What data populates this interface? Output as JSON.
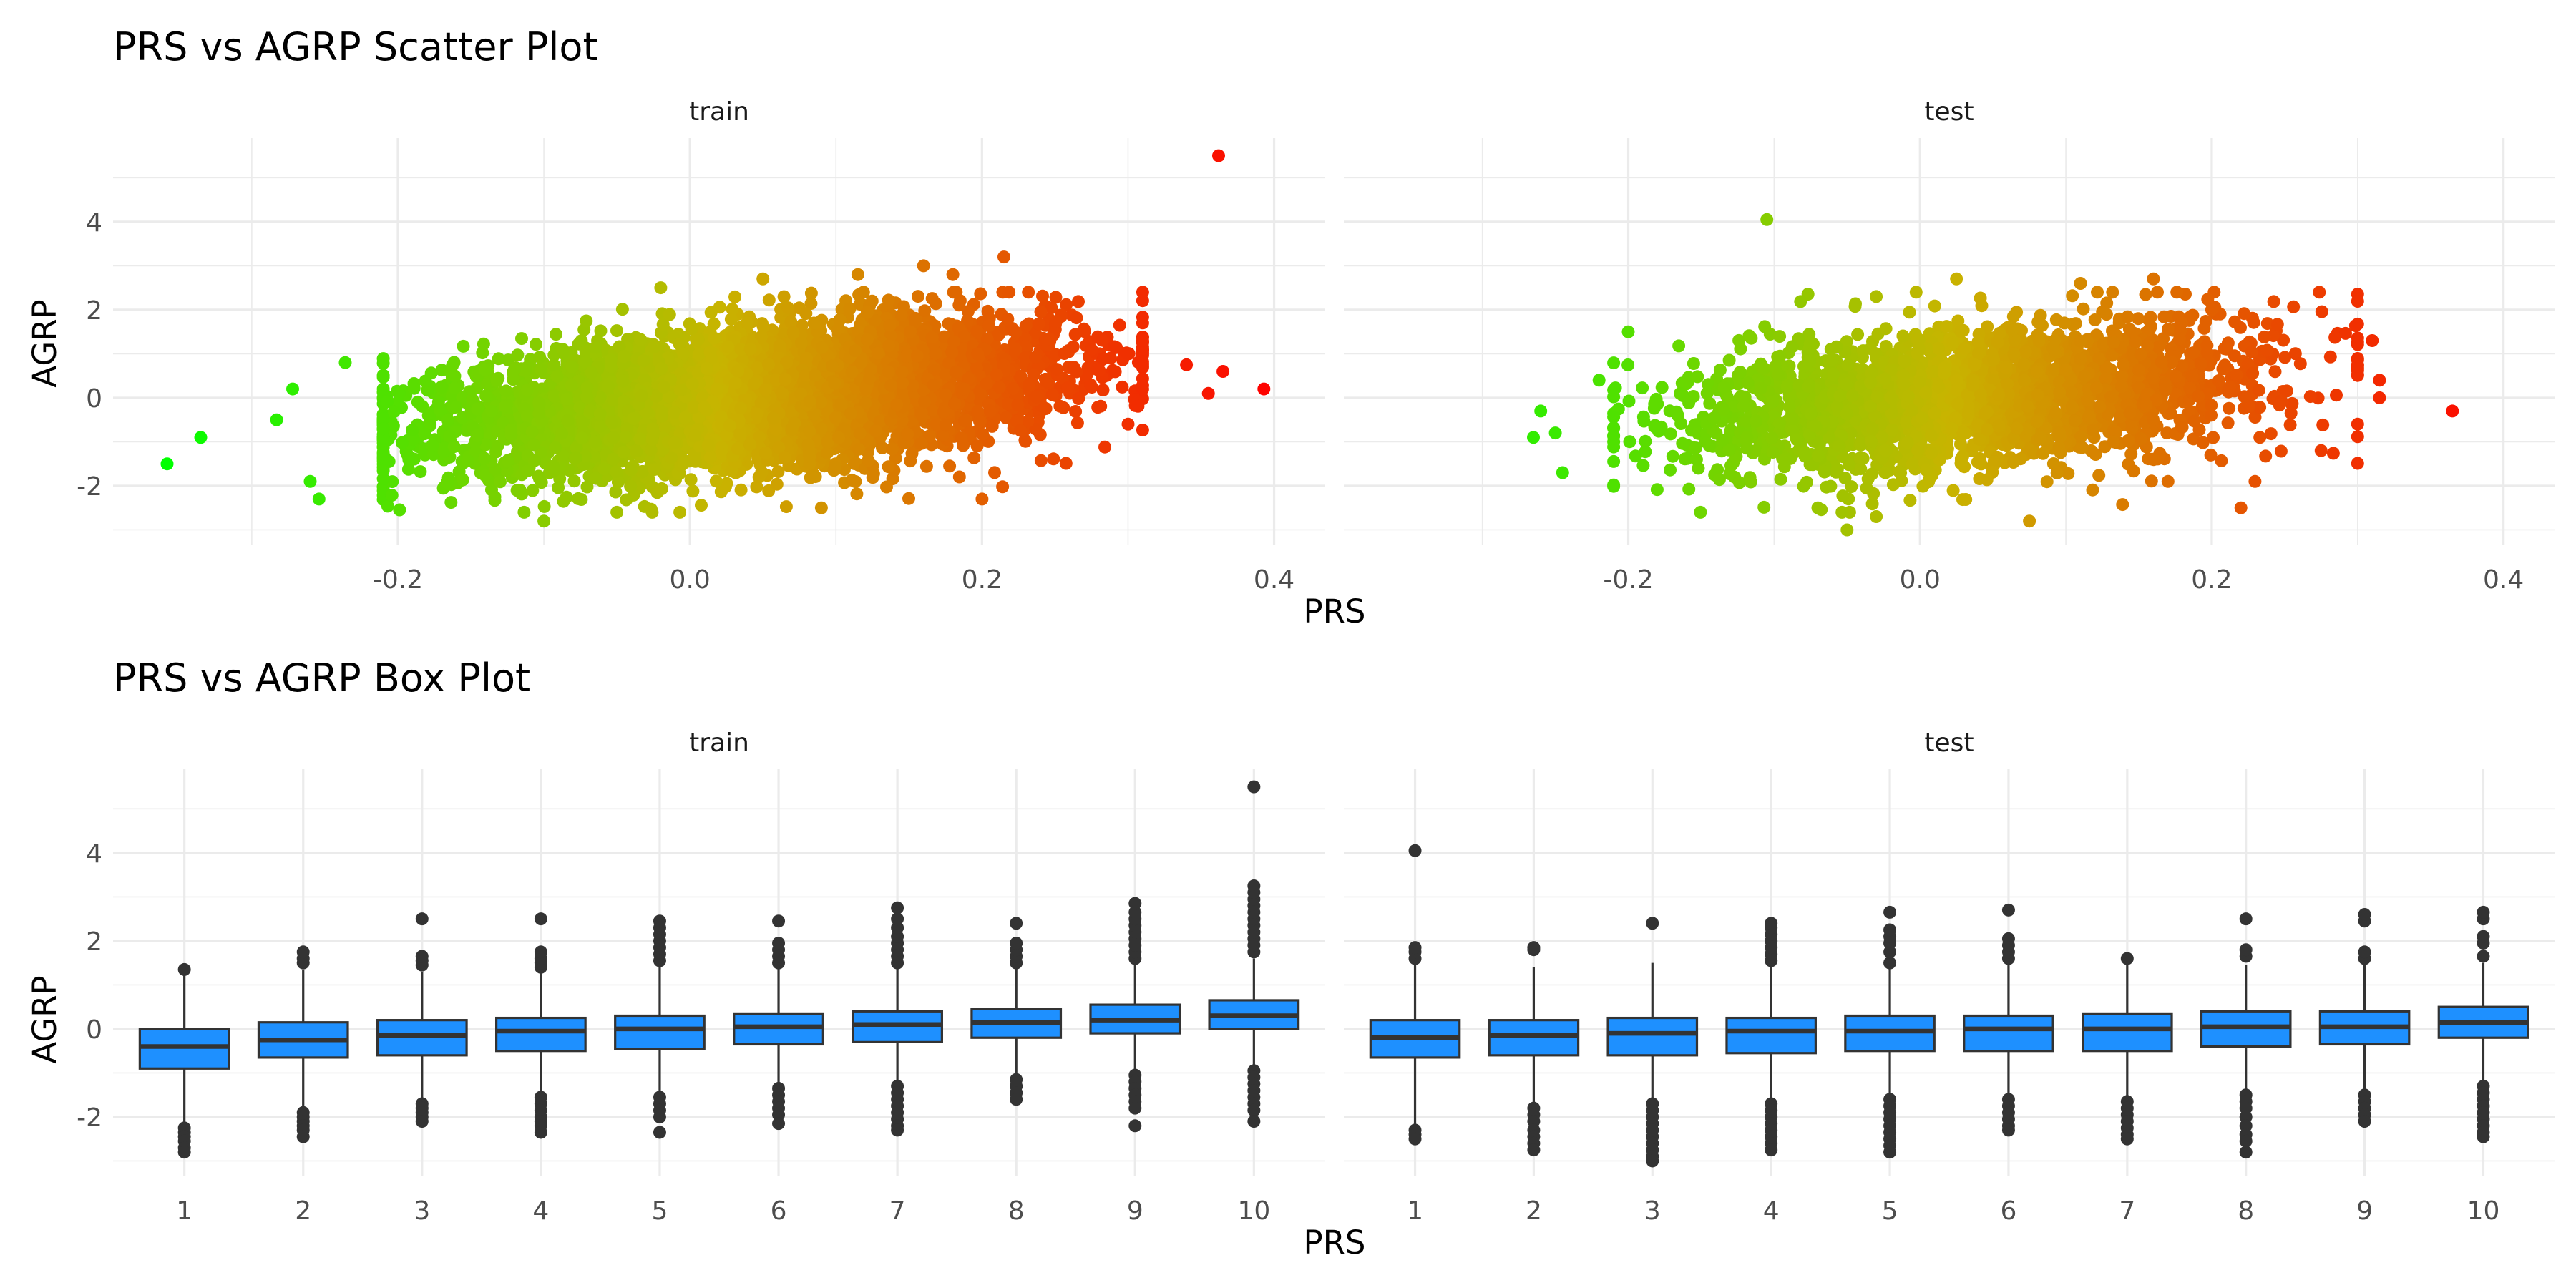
{
  "chart_data": [
    {
      "type": "scatter",
      "title": "PRS vs AGRP Scatter Plot",
      "xlabel": "PRS",
      "ylabel": "AGRP",
      "xlim": [
        -0.395,
        0.435
      ],
      "ylim": [
        -3.35,
        5.9
      ],
      "x_ticks": [
        -0.2,
        0.0,
        0.2,
        0.4
      ],
      "x_tick_labels": [
        "-0.2",
        "0.0",
        "0.2",
        "0.4"
      ],
      "y_ticks": [
        -2,
        0,
        2,
        4
      ],
      "y_tick_labels": [
        "-2",
        "0",
        "2",
        "4"
      ],
      "grid": true,
      "color_scale": {
        "low": "#00ff00",
        "mid": "#c8b400",
        "high": "#ff0000",
        "variable": "PRS"
      },
      "panels": [
        {
          "name": "train",
          "approx_n": 5500,
          "bulk_x_range": [
            -0.17,
            0.26
          ],
          "slope": 3.0,
          "y_sd": 0.75,
          "notable_points": [
            {
              "x": -0.358,
              "y": -1.5
            },
            {
              "x": -0.335,
              "y": -0.9
            },
            {
              "x": -0.283,
              "y": -0.5
            },
            {
              "x": -0.272,
              "y": 0.2
            },
            {
              "x": -0.26,
              "y": -1.9
            },
            {
              "x": -0.254,
              "y": -2.3
            },
            {
              "x": -0.236,
              "y": 0.8
            },
            {
              "x": -0.1,
              "y": -2.8
            },
            {
              "x": 0.215,
              "y": 3.2
            },
            {
              "x": 0.355,
              "y": 0.1
            },
            {
              "x": 0.362,
              "y": 5.5
            },
            {
              "x": 0.393,
              "y": 0.2
            },
            {
              "x": 0.365,
              "y": 0.6
            },
            {
              "x": 0.34,
              "y": 0.75
            },
            {
              "x": 0.3,
              "y": -0.6
            },
            {
              "x": 0.31,
              "y": 1.3
            },
            {
              "x": 0.275,
              "y": 1.1
            },
            {
              "x": 0.18,
              "y": 2.8
            },
            {
              "x": 0.16,
              "y": 3.0
            },
            {
              "x": 0.115,
              "y": 2.8
            },
            {
              "x": 0.05,
              "y": 2.7
            },
            {
              "x": -0.02,
              "y": 2.5
            },
            {
              "x": 0.09,
              "y": -2.5
            },
            {
              "x": 0.2,
              "y": -2.3
            },
            {
              "x": -0.05,
              "y": -2.6
            }
          ]
        },
        {
          "name": "test",
          "approx_n": 2400,
          "bulk_x_range": [
            -0.17,
            0.25
          ],
          "slope": 3.0,
          "y_sd": 0.8,
          "notable_points": [
            {
              "x": -0.105,
              "y": 4.05
            },
            {
              "x": -0.26,
              "y": -0.3
            },
            {
              "x": -0.265,
              "y": -0.9
            },
            {
              "x": -0.245,
              "y": -1.7
            },
            {
              "x": -0.25,
              "y": -0.8
            },
            {
              "x": -0.22,
              "y": 0.4
            },
            {
              "x": -0.2,
              "y": 1.5
            },
            {
              "x": 0.365,
              "y": -0.3
            },
            {
              "x": 0.31,
              "y": 1.3
            },
            {
              "x": 0.315,
              "y": 0.4
            },
            {
              "x": 0.315,
              "y": 0.0
            },
            {
              "x": 0.3,
              "y": -0.6
            },
            {
              "x": 0.275,
              "y": -1.2
            },
            {
              "x": 0.22,
              "y": -2.5
            },
            {
              "x": 0.17,
              "y": -1.9
            },
            {
              "x": 0.2,
              "y": 2.0
            },
            {
              "x": 0.16,
              "y": 2.7
            },
            {
              "x": 0.11,
              "y": 2.6
            },
            {
              "x": 0.025,
              "y": 2.7
            },
            {
              "x": -0.03,
              "y": 2.3
            },
            {
              "x": -0.05,
              "y": -3.0
            },
            {
              "x": 0.075,
              "y": -2.8
            },
            {
              "x": -0.03,
              "y": -2.7
            },
            {
              "x": -0.07,
              "y": -2.5
            }
          ]
        }
      ]
    },
    {
      "type": "box",
      "title": "PRS vs AGRP Box Plot",
      "xlabel": "PRS",
      "ylabel": "AGRP",
      "categories": [
        "1",
        "2",
        "3",
        "4",
        "5",
        "6",
        "7",
        "8",
        "9",
        "10"
      ],
      "ylim": [
        -3.35,
        5.9
      ],
      "y_ticks": [
        -2,
        0,
        2,
        4
      ],
      "y_tick_labels": [
        "-2",
        "0",
        "2",
        "4"
      ],
      "box_color": "#1e90ff",
      "grid": true,
      "panels": [
        {
          "name": "train",
          "boxes": [
            {
              "q1": -0.9,
              "median": -0.4,
              "q3": 0.0,
              "lower": -2.15,
              "upper": 1.35,
              "outliers": [
                -2.25,
                -2.35,
                -2.45,
                -2.55,
                -2.7,
                -2.8,
                1.35
              ]
            },
            {
              "q1": -0.65,
              "median": -0.25,
              "q3": 0.15,
              "lower": -1.8,
              "upper": 1.35,
              "outliers": [
                1.5,
                1.6,
                1.75,
                -1.9,
                -2.0,
                -2.1,
                -2.2,
                -2.3,
                -2.45
              ]
            },
            {
              "q1": -0.6,
              "median": -0.15,
              "q3": 0.2,
              "lower": -1.65,
              "upper": 1.3,
              "outliers": [
                1.45,
                1.55,
                1.65,
                2.5,
                -1.7,
                -1.8,
                -1.9,
                -2.0,
                -2.1
              ]
            },
            {
              "q1": -0.5,
              "median": -0.05,
              "q3": 0.25,
              "lower": -1.5,
              "upper": 1.3,
              "outliers": [
                1.4,
                1.5,
                1.6,
                1.75,
                2.5,
                -1.55,
                -1.7,
                -1.85,
                -2.0,
                -2.1,
                -2.2,
                -2.35
              ]
            },
            {
              "q1": -0.45,
              "median": 0.0,
              "q3": 0.3,
              "lower": -1.45,
              "upper": 1.4,
              "outliers": [
                1.55,
                1.7,
                1.85,
                2.0,
                2.15,
                2.3,
                2.45,
                -1.55,
                -1.7,
                -1.85,
                -2.0,
                -2.35
              ]
            },
            {
              "q1": -0.35,
              "median": 0.05,
              "q3": 0.35,
              "lower": -1.3,
              "upper": 1.4,
              "outliers": [
                1.5,
                1.65,
                1.8,
                1.95,
                2.45,
                -1.35,
                -1.5,
                -1.65,
                -1.8,
                -1.95,
                -2.15
              ]
            },
            {
              "q1": -0.3,
              "median": 0.1,
              "q3": 0.4,
              "lower": -1.25,
              "upper": 1.4,
              "outliers": [
                1.5,
                1.65,
                1.8,
                1.95,
                2.1,
                2.3,
                2.5,
                2.75,
                -1.3,
                -1.45,
                -1.6,
                -1.75,
                -1.9,
                -2.05,
                -2.2,
                -2.3
              ]
            },
            {
              "q1": -0.2,
              "median": 0.15,
              "q3": 0.45,
              "lower": -1.1,
              "upper": 1.4,
              "outliers": [
                1.5,
                1.65,
                1.8,
                1.95,
                2.4,
                -1.15,
                -1.3,
                -1.45,
                -1.6
              ]
            },
            {
              "q1": -0.1,
              "median": 0.2,
              "q3": 0.55,
              "lower": -1.0,
              "upper": 1.5,
              "outliers": [
                1.6,
                1.75,
                1.9,
                2.05,
                2.2,
                2.35,
                2.5,
                2.65,
                2.85,
                -1.05,
                -1.2,
                -1.35,
                -1.5,
                -1.65,
                -1.8,
                -2.2
              ]
            },
            {
              "q1": 0.0,
              "median": 0.3,
              "q3": 0.65,
              "lower": -0.9,
              "upper": 1.6,
              "outliers": [
                1.75,
                1.9,
                2.05,
                2.2,
                2.35,
                2.5,
                2.65,
                2.8,
                2.95,
                3.1,
                3.25,
                5.5,
                -0.95,
                -1.1,
                -1.25,
                -1.4,
                -1.55,
                -1.7,
                -1.85,
                -2.1
              ]
            }
          ]
        },
        {
          "name": "test",
          "boxes": [
            {
              "q1": -0.65,
              "median": -0.2,
              "q3": 0.2,
              "lower": -2.2,
              "upper": 1.5,
              "outliers": [
                1.6,
                1.75,
                1.85,
                4.05,
                -2.3,
                -2.4,
                -2.5
              ]
            },
            {
              "q1": -0.6,
              "median": -0.15,
              "q3": 0.2,
              "lower": -1.7,
              "upper": 1.4,
              "outliers": [
                1.8,
                1.85,
                -1.8,
                -1.95,
                -2.1,
                -2.3,
                -2.45,
                -2.6,
                -2.75
              ]
            },
            {
              "q1": -0.6,
              "median": -0.1,
              "q3": 0.25,
              "lower": -1.6,
              "upper": 1.5,
              "outliers": [
                2.4,
                -1.7,
                -1.85,
                -2.0,
                -2.15,
                -2.3,
                -2.45,
                -2.6,
                -2.75,
                -2.9,
                -3.0
              ]
            },
            {
              "q1": -0.55,
              "median": -0.05,
              "q3": 0.25,
              "lower": -1.6,
              "upper": 1.4,
              "outliers": [
                1.55,
                1.7,
                1.85,
                2.0,
                2.15,
                2.3,
                2.4,
                -1.7,
                -1.85,
                -2.0,
                -2.15,
                -2.3,
                -2.45,
                -2.6,
                -2.75
              ]
            },
            {
              "q1": -0.5,
              "median": -0.05,
              "q3": 0.3,
              "lower": -1.5,
              "upper": 1.4,
              "outliers": [
                1.5,
                1.75,
                1.95,
                2.1,
                2.25,
                2.65,
                -1.6,
                -1.75,
                -1.9,
                -2.05,
                -2.2,
                -2.35,
                -2.5,
                -2.65,
                -2.8
              ]
            },
            {
              "q1": -0.5,
              "median": 0.0,
              "q3": 0.3,
              "lower": -1.5,
              "upper": 1.5,
              "outliers": [
                1.6,
                1.75,
                1.9,
                2.05,
                2.7,
                -1.6,
                -1.75,
                -1.9,
                -2.05,
                -2.2,
                -2.3
              ]
            },
            {
              "q1": -0.5,
              "median": 0.0,
              "q3": 0.35,
              "lower": -1.55,
              "upper": 1.55,
              "outliers": [
                1.6,
                -1.65,
                -1.8,
                -1.95,
                -2.1,
                -2.25,
                -2.4,
                -2.5
              ]
            },
            {
              "q1": -0.4,
              "median": 0.05,
              "q3": 0.4,
              "lower": -1.4,
              "upper": 1.45,
              "outliers": [
                1.65,
                1.8,
                2.5,
                -1.5,
                -1.65,
                -1.8,
                -2.0,
                -2.2,
                -2.4,
                -2.55,
                -2.8
              ]
            },
            {
              "q1": -0.35,
              "median": 0.05,
              "q3": 0.4,
              "lower": -1.4,
              "upper": 1.5,
              "outliers": [
                1.6,
                1.75,
                2.45,
                2.6,
                -1.5,
                -1.65,
                -1.8,
                -1.95,
                -2.1
              ]
            },
            {
              "q1": -0.2,
              "median": 0.15,
              "q3": 0.5,
              "lower": -1.25,
              "upper": 1.5,
              "outliers": [
                1.65,
                1.95,
                2.1,
                2.5,
                2.65,
                -1.3,
                -1.45,
                -1.6,
                -1.75,
                -1.9,
                -2.05,
                -2.2,
                -2.35,
                -2.45
              ]
            }
          ]
        }
      ]
    }
  ]
}
